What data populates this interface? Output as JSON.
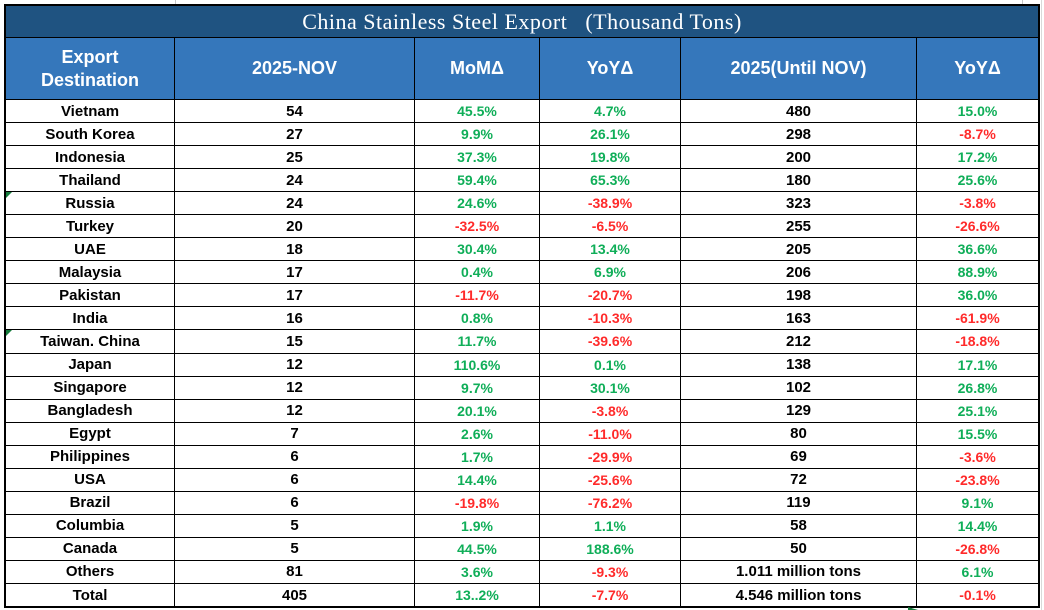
{
  "title": "China Stainless Steel Export   (Thousand Tons)",
  "columns": [
    "Export Destination",
    "2025-NOV",
    "MoMΔ",
    "YoYΔ",
    "2025(Until NOV)",
    "YoYΔ"
  ],
  "rows": [
    {
      "dest": "Vietnam",
      "nov": "54",
      "mom": "45.5%",
      "yoy": "4.7%",
      "ytd": "480",
      "ytd_yoy": "15.0%"
    },
    {
      "dest": "South Korea",
      "nov": "27",
      "mom": "9.9%",
      "yoy": "26.1%",
      "ytd": "298",
      "ytd_yoy": "-8.7%"
    },
    {
      "dest": "Indonesia",
      "nov": "25",
      "mom": "37.3%",
      "yoy": "19.8%",
      "ytd": "200",
      "ytd_yoy": "17.2%"
    },
    {
      "dest": "Thailand",
      "nov": "24",
      "mom": "59.4%",
      "yoy": "65.3%",
      "ytd": "180",
      "ytd_yoy": "25.6%"
    },
    {
      "dest": "Russia",
      "nov": "24",
      "mom": "24.6%",
      "yoy": "-38.9%",
      "ytd": "323",
      "ytd_yoy": "-3.8%",
      "flag": true
    },
    {
      "dest": "Turkey",
      "nov": "20",
      "mom": "-32.5%",
      "yoy": "-6.5%",
      "ytd": "255",
      "ytd_yoy": "-26.6%"
    },
    {
      "dest": "UAE",
      "nov": "18",
      "mom": "30.4%",
      "yoy": "13.4%",
      "ytd": "205",
      "ytd_yoy": "36.6%"
    },
    {
      "dest": "Malaysia",
      "nov": "17",
      "mom": "0.4%",
      "yoy": "6.9%",
      "ytd": "206",
      "ytd_yoy": "88.9%"
    },
    {
      "dest": "Pakistan",
      "nov": "17",
      "mom": "-11.7%",
      "yoy": "-20.7%",
      "ytd": "198",
      "ytd_yoy": "36.0%"
    },
    {
      "dest": "India",
      "nov": "16",
      "mom": "0.8%",
      "yoy": "-10.3%",
      "ytd": "163",
      "ytd_yoy": "-61.9%"
    },
    {
      "dest": "Taiwan. China",
      "nov": "15",
      "mom": "11.7%",
      "yoy": "-39.6%",
      "ytd": "212",
      "ytd_yoy": "-18.8%",
      "flag": true
    },
    {
      "dest": "Japan",
      "nov": "12",
      "mom": "110.6%",
      "yoy": "0.1%",
      "ytd": "138",
      "ytd_yoy": "17.1%"
    },
    {
      "dest": "Singapore",
      "nov": "12",
      "mom": "9.7%",
      "yoy": "30.1%",
      "ytd": "102",
      "ytd_yoy": "26.8%"
    },
    {
      "dest": "Bangladesh",
      "nov": "12",
      "mom": "20.1%",
      "yoy": "-3.8%",
      "ytd": "129",
      "ytd_yoy": "25.1%"
    },
    {
      "dest": "Egypt",
      "nov": "7",
      "mom": "2.6%",
      "yoy": "-11.0%",
      "ytd": "80",
      "ytd_yoy": "15.5%"
    },
    {
      "dest": "Philippines",
      "nov": "6",
      "mom": "1.7%",
      "yoy": "-29.9%",
      "ytd": "69",
      "ytd_yoy": "-3.6%"
    },
    {
      "dest": "USA",
      "nov": "6",
      "mom": "14.4%",
      "yoy": "-25.6%",
      "ytd": "72",
      "ytd_yoy": "-23.8%"
    },
    {
      "dest": "Brazil",
      "nov": "6",
      "mom": "-19.8%",
      "yoy": "-76.2%",
      "ytd": "119",
      "ytd_yoy": "9.1%"
    },
    {
      "dest": "Columbia",
      "nov": "5",
      "mom": "1.9%",
      "yoy": "1.1%",
      "ytd": "58",
      "ytd_yoy": "14.4%"
    },
    {
      "dest": "Canada",
      "nov": "5",
      "mom": "44.5%",
      "yoy": "188.6%",
      "ytd": "50",
      "ytd_yoy": "-26.8%"
    },
    {
      "dest": "Others",
      "nov": "81",
      "mom": "3.6%",
      "yoy": "-9.3%",
      "ytd": "1.011 million tons",
      "ytd_yoy": "6.1%"
    },
    {
      "dest": "Total",
      "nov": "405",
      "mom": "13..2%",
      "yoy": "-7.7%",
      "ytd": "4.546 million tons",
      "ytd_yoy": "-0.1%"
    }
  ],
  "colors": {
    "title_bg": "#1f5381",
    "header_bg": "#3577bb",
    "positive": "#0fae58",
    "negative": "#ff2a2a",
    "flag_green": "#157c3c"
  }
}
